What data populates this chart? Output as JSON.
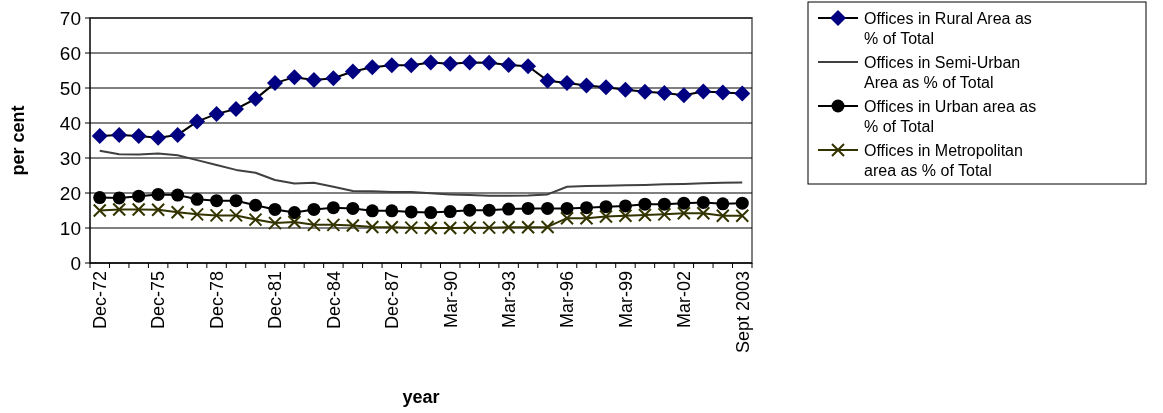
{
  "chart_data": {
    "type": "line",
    "xlabel": "year",
    "ylabel": "per cent",
    "categories": [
      "Dec-72",
      null,
      null,
      "Dec-75",
      null,
      null,
      "Dec-78",
      null,
      null,
      "Dec-81",
      null,
      null,
      "Dec-84",
      null,
      null,
      "Dec-87",
      null,
      null,
      "Mar-90",
      null,
      null,
      "Mar-93",
      null,
      null,
      "Mar-96",
      null,
      null,
      "Mar-99",
      null,
      null,
      "Mar-02",
      null,
      null,
      "Sept 2003"
    ],
    "series": [
      {
        "name": "Offices in Rural Area as % of Total",
        "color": "#000080",
        "marker": "diamond",
        "values": [
          36.3,
          36.6,
          36.3,
          35.8,
          36.6,
          40.4,
          42.6,
          44.0,
          46.9,
          51.4,
          53.1,
          52.3,
          52.8,
          54.7,
          55.9,
          56.5,
          56.5,
          57.3,
          56.9,
          57.3,
          57.2,
          56.6,
          56.2,
          52.1,
          51.4,
          50.7,
          50.2,
          49.5,
          48.9,
          48.6,
          47.9,
          49.0,
          48.7,
          48.4
        ]
      },
      {
        "name": "Offices in Semi-Urban Area as % of Total",
        "color": "#404040",
        "marker": "none",
        "values": [
          32.1,
          31.1,
          31.0,
          31.3,
          30.8,
          29.4,
          28.0,
          26.6,
          25.8,
          23.7,
          22.7,
          22.9,
          21.8,
          20.6,
          20.5,
          20.3,
          20.3,
          19.9,
          19.6,
          19.4,
          19.2,
          19.2,
          19.3,
          19.6,
          21.8,
          22.0,
          22.1,
          22.2,
          22.3,
          22.5,
          22.6,
          22.8,
          22.9,
          23.0
        ]
      },
      {
        "name": "Offices in Urban area as % of Total",
        "color": "#000000",
        "marker": "circle",
        "values": [
          18.7,
          18.6,
          19.1,
          19.6,
          19.4,
          18.2,
          17.8,
          17.8,
          16.5,
          15.3,
          14.4,
          15.3,
          15.8,
          15.6,
          14.9,
          14.9,
          14.6,
          14.4,
          14.7,
          15.1,
          15.1,
          15.4,
          15.6,
          15.6,
          15.6,
          15.8,
          16.1,
          16.3,
          16.8,
          16.8,
          17.1,
          17.3,
          16.9,
          17.1
        ]
      },
      {
        "name": "Offices in Metropolitan area as % of Total",
        "color": "#333300",
        "marker": "cross",
        "values": [
          15.0,
          15.3,
          15.3,
          15.2,
          14.5,
          13.9,
          13.6,
          13.6,
          12.4,
          11.4,
          11.7,
          10.9,
          10.9,
          10.7,
          10.3,
          10.2,
          10.1,
          10.0,
          10.0,
          10.1,
          10.1,
          10.2,
          10.2,
          10.3,
          12.8,
          12.8,
          13.3,
          13.5,
          13.7,
          13.9,
          14.2,
          14.2,
          13.5,
          13.5
        ]
      }
    ],
    "ylim": [
      0,
      70
    ],
    "yticks": [
      0,
      10,
      20,
      30,
      40,
      50,
      60,
      70
    ],
    "grid": "y",
    "legend": "right",
    "line_style": "solid"
  }
}
